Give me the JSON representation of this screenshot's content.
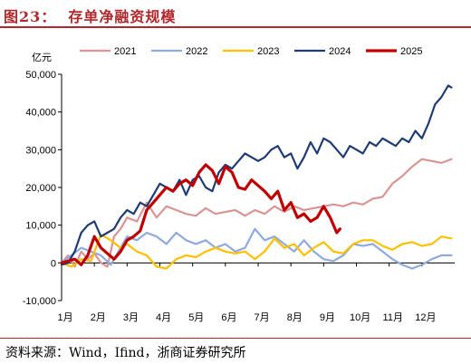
{
  "title": "图23：  存单净融资规模",
  "source": "资料来源：Wind，Ifind，浙商证券研究所",
  "chart_data": {
    "type": "line",
    "ylabel": "亿元",
    "ylim": [
      -10000,
      50000
    ],
    "yticks": [
      -10000,
      0,
      10000,
      20000,
      30000,
      40000,
      50000
    ],
    "ytick_labels": [
      "-10,000",
      "0",
      "10,000",
      "20,000",
      "30,000",
      "40,000",
      "50,000"
    ],
    "xlim": [
      1,
      13
    ],
    "xticks": [
      1,
      2,
      3,
      4,
      5,
      6,
      7,
      8,
      9,
      10,
      11,
      12
    ],
    "xtick_labels": [
      "1月",
      "2月",
      "3月",
      "4月",
      "5月",
      "6月",
      "7月",
      "8月",
      "9月",
      "10月",
      "11月",
      "12月"
    ],
    "legend_position": "top",
    "series": [
      {
        "name": "2021",
        "color": "#d99594",
        "width": 2.2,
        "x": [
          1.0,
          1.2,
          1.4,
          1.6,
          1.8,
          2.0,
          2.2,
          2.4,
          2.6,
          2.8,
          3.0,
          3.3,
          3.6,
          3.9,
          4.2,
          4.5,
          4.8,
          5.1,
          5.4,
          5.7,
          6.0,
          6.3,
          6.6,
          6.9,
          7.2,
          7.5,
          7.8,
          8.1,
          8.4,
          8.7,
          9.0,
          9.3,
          9.6,
          9.9,
          10.2,
          10.5,
          10.8,
          11.1,
          11.4,
          11.7,
          12.0,
          12.3,
          12.6,
          12.9
        ],
        "y": [
          0,
          2000,
          -1000,
          3000,
          1000,
          2500,
          0,
          -1000,
          7000,
          9000,
          12000,
          11000,
          16000,
          12000,
          15000,
          14000,
          13000,
          12500,
          14500,
          13000,
          13500,
          14000,
          12500,
          14000,
          13000,
          15000,
          13500,
          15000,
          14000,
          14500,
          15000,
          15500,
          15000,
          16000,
          15500,
          17000,
          17500,
          21000,
          23000,
          25500,
          27500,
          27000,
          26500,
          27500
        ]
      },
      {
        "name": "2022",
        "color": "#8faadc",
        "width": 2.2,
        "x": [
          1.0,
          1.3,
          1.6,
          1.9,
          2.2,
          2.5,
          2.8,
          3.0,
          3.3,
          3.6,
          3.9,
          4.2,
          4.5,
          4.8,
          5.1,
          5.4,
          5.7,
          6.0,
          6.3,
          6.6,
          6.9,
          7.2,
          7.5,
          7.8,
          8.1,
          8.4,
          8.7,
          9.0,
          9.3,
          9.6,
          9.9,
          10.2,
          10.5,
          10.8,
          11.1,
          11.4,
          11.7,
          12.0,
          12.3,
          12.6,
          12.9
        ],
        "y": [
          0,
          2000,
          4000,
          3000,
          2000,
          -500,
          4000,
          7000,
          6000,
          8000,
          7000,
          5000,
          8000,
          6000,
          5000,
          6000,
          4000,
          5000,
          3000,
          4000,
          9000,
          6000,
          7000,
          5000,
          3000,
          6000,
          3000,
          1000,
          500,
          2000,
          5000,
          4500,
          5000,
          3000,
          1000,
          -500,
          -1500,
          -500,
          1000,
          2000,
          2000
        ]
      },
      {
        "name": "2023",
        "color": "#ffc000",
        "width": 2.2,
        "x": [
          1.0,
          1.3,
          1.6,
          1.9,
          2.2,
          2.5,
          2.8,
          3.0,
          3.3,
          3.6,
          3.9,
          4.2,
          4.5,
          4.8,
          5.1,
          5.4,
          5.7,
          6.0,
          6.3,
          6.6,
          6.9,
          7.2,
          7.5,
          7.8,
          8.1,
          8.4,
          8.7,
          9.0,
          9.3,
          9.6,
          9.9,
          10.2,
          10.5,
          10.8,
          11.1,
          11.4,
          11.7,
          12.0,
          12.3,
          12.6,
          12.9
        ],
        "y": [
          0,
          -1000,
          1000,
          500,
          7500,
          6000,
          4000,
          5000,
          3000,
          2000,
          -1000,
          -1500,
          1000,
          2000,
          1500,
          3000,
          4000,
          3000,
          2500,
          3000,
          1000,
          3000,
          6500,
          4000,
          5000,
          2000,
          4000,
          5500,
          3000,
          2500,
          5000,
          6000,
          6000,
          4500,
          3500,
          5000,
          5500,
          4500,
          5000,
          7000,
          6500
        ]
      },
      {
        "name": "2024",
        "color": "#1f3b73",
        "width": 2.2,
        "x": [
          1.0,
          1.2,
          1.4,
          1.6,
          1.8,
          2.0,
          2.2,
          2.4,
          2.6,
          2.8,
          3.0,
          3.2,
          3.4,
          3.6,
          3.8,
          4.0,
          4.2,
          4.4,
          4.6,
          4.8,
          5.0,
          5.2,
          5.4,
          5.6,
          5.8,
          6.0,
          6.2,
          6.4,
          6.6,
          6.8,
          7.0,
          7.2,
          7.4,
          7.6,
          7.8,
          8.0,
          8.2,
          8.4,
          8.6,
          8.8,
          9.0,
          9.2,
          9.4,
          9.6,
          9.8,
          10.0,
          10.2,
          10.4,
          10.6,
          10.8,
          11.0,
          11.2,
          11.4,
          11.6,
          11.8,
          12.0,
          12.2,
          12.4,
          12.6,
          12.8,
          12.9
        ],
        "y": [
          -500,
          0,
          3000,
          8000,
          10000,
          11000,
          7000,
          8000,
          9000,
          12000,
          14000,
          13000,
          16000,
          15000,
          18000,
          21000,
          20000,
          19000,
          22000,
          18000,
          22000,
          23000,
          20000,
          19000,
          24000,
          26000,
          25000,
          27000,
          29000,
          28000,
          27000,
          28000,
          30000,
          31000,
          28000,
          29000,
          25000,
          28000,
          32000,
          29000,
          33000,
          32000,
          30000,
          28000,
          31000,
          30000,
          29000,
          32000,
          31000,
          33000,
          32000,
          31000,
          33000,
          32000,
          35000,
          33000,
          37000,
          42000,
          44000,
          47000,
          46500
        ]
      },
      {
        "name": "2025",
        "color": "#c00000",
        "width": 3.2,
        "x": [
          1.0,
          1.2,
          1.4,
          1.6,
          1.8,
          2.0,
          2.2,
          2.4,
          2.6,
          2.8,
          3.0,
          3.2,
          3.4,
          3.6,
          3.8,
          4.0,
          4.2,
          4.4,
          4.6,
          4.8,
          5.0,
          5.2,
          5.4,
          5.6,
          5.8,
          6.0,
          6.2,
          6.4,
          6.6,
          6.8,
          7.0,
          7.2,
          7.4,
          7.6,
          7.8,
          8.0,
          8.2,
          8.4,
          8.6,
          8.8,
          9.0,
          9.2,
          9.4,
          9.5
        ],
        "y": [
          0,
          500,
          1000,
          -500,
          2000,
          7000,
          4000,
          2500,
          1000,
          3000,
          6000,
          7000,
          8500,
          14000,
          16000,
          18000,
          20000,
          19000,
          21000,
          22000,
          20500,
          24000,
          26000,
          24500,
          21000,
          25500,
          24000,
          20000,
          19500,
          22000,
          20500,
          19000,
          17000,
          19000,
          14000,
          16000,
          12000,
          13000,
          11000,
          12000,
          15000,
          12000,
          8000,
          9000
        ]
      }
    ]
  }
}
